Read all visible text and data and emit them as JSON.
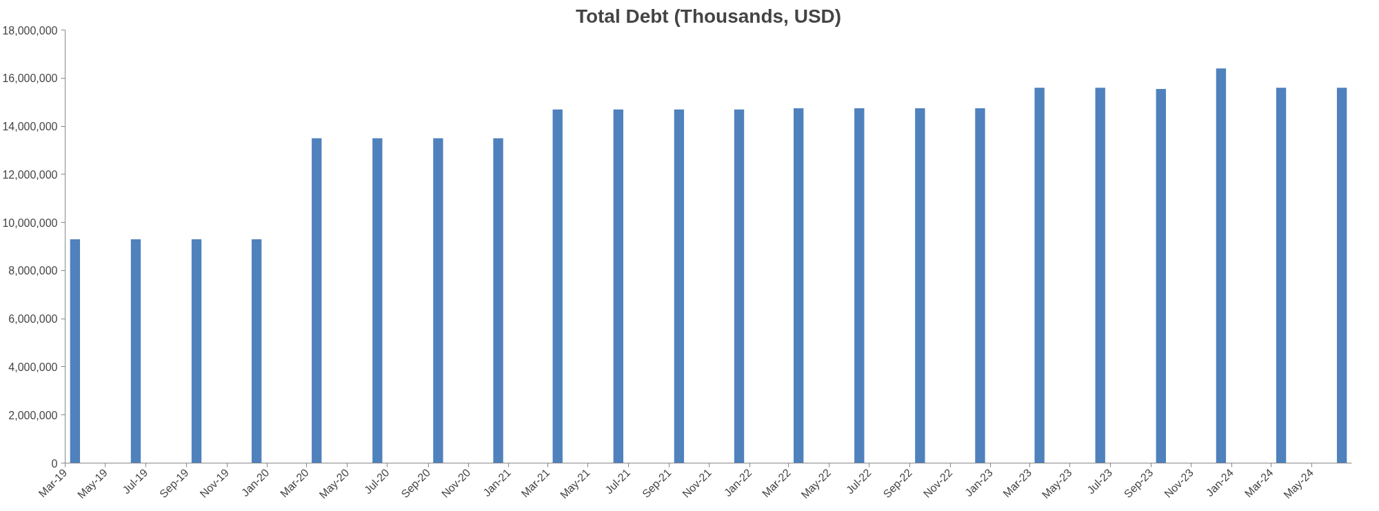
{
  "chart_data": {
    "type": "bar",
    "title": "Total Debt (Thousands, USD)",
    "x": [
      "2019-03-16",
      "2019-06-16",
      "2019-09-16",
      "2019-12-16",
      "2020-03-16",
      "2020-06-16",
      "2020-09-16",
      "2020-12-16",
      "2021-03-16",
      "2021-06-16",
      "2021-09-16",
      "2021-12-16",
      "2022-03-16",
      "2022-06-16",
      "2022-09-16",
      "2022-12-16",
      "2023-03-16",
      "2023-06-16",
      "2023-09-16",
      "2023-12-16",
      "2024-03-16",
      "2024-06-16"
    ],
    "values": [
      9300000,
      9300000,
      9300000,
      9300000,
      13500000,
      13500000,
      13500000,
      13500000,
      14700000,
      14700000,
      14700000,
      14700000,
      14750000,
      14750000,
      14750000,
      14750000,
      15600000,
      15600000,
      15550000,
      16400000,
      15600000,
      15600000
    ],
    "color": "#4f81bd",
    "xlim": [
      "2019-03",
      "2024-07"
    ],
    "xticks": [
      {
        "value": "2019-03",
        "label": "Mar-19"
      },
      {
        "value": "2019-05",
        "label": "May-19"
      },
      {
        "value": "2019-07",
        "label": "Jul-19"
      },
      {
        "value": "2019-09",
        "label": "Sep-19"
      },
      {
        "value": "2019-11",
        "label": "Nov-19"
      },
      {
        "value": "2020-01",
        "label": "Jan-20"
      },
      {
        "value": "2020-03",
        "label": "Mar-20"
      },
      {
        "value": "2020-05",
        "label": "May-20"
      },
      {
        "value": "2020-07",
        "label": "Jul-20"
      },
      {
        "value": "2020-09",
        "label": "Sep-20"
      },
      {
        "value": "2020-11",
        "label": "Nov-20"
      },
      {
        "value": "2021-01",
        "label": "Jan-21"
      },
      {
        "value": "2021-03",
        "label": "Mar-21"
      },
      {
        "value": "2021-05",
        "label": "May-21"
      },
      {
        "value": "2021-07",
        "label": "Jul-21"
      },
      {
        "value": "2021-09",
        "label": "Sep-21"
      },
      {
        "value": "2021-11",
        "label": "Nov-21"
      },
      {
        "value": "2022-01",
        "label": "Jan-22"
      },
      {
        "value": "2022-03",
        "label": "Mar-22"
      },
      {
        "value": "2022-05",
        "label": "May-22"
      },
      {
        "value": "2022-07",
        "label": "Jul-22"
      },
      {
        "value": "2022-09",
        "label": "Sep-22"
      },
      {
        "value": "2022-11",
        "label": "Nov-22"
      },
      {
        "value": "2023-01",
        "label": "Jan-23"
      },
      {
        "value": "2023-03",
        "label": "Mar-23"
      },
      {
        "value": "2023-05",
        "label": "May-23"
      },
      {
        "value": "2023-07",
        "label": "Jul-23"
      },
      {
        "value": "2023-09",
        "label": "Sep-23"
      },
      {
        "value": "2023-11",
        "label": "Nov-23"
      },
      {
        "value": "2024-01",
        "label": "Jan-24"
      },
      {
        "value": "2024-03",
        "label": "Mar-24"
      },
      {
        "value": "2024-05",
        "label": "May-24"
      }
    ],
    "ylim": [
      0,
      18000000
    ],
    "yticks": [
      {
        "value": 0,
        "label": "0"
      },
      {
        "value": 2000000,
        "label": "2,000,000"
      },
      {
        "value": 4000000,
        "label": "4,000,000"
      },
      {
        "value": 6000000,
        "label": "6,000,000"
      },
      {
        "value": 8000000,
        "label": "8,000,000"
      },
      {
        "value": 10000000,
        "label": "10,000,000"
      },
      {
        "value": 12000000,
        "label": "12,000,000"
      },
      {
        "value": 14000000,
        "label": "14,000,000"
      },
      {
        "value": 16000000,
        "label": "16,000,000"
      },
      {
        "value": 18000000,
        "label": "18,000,000"
      }
    ],
    "grid": false
  }
}
